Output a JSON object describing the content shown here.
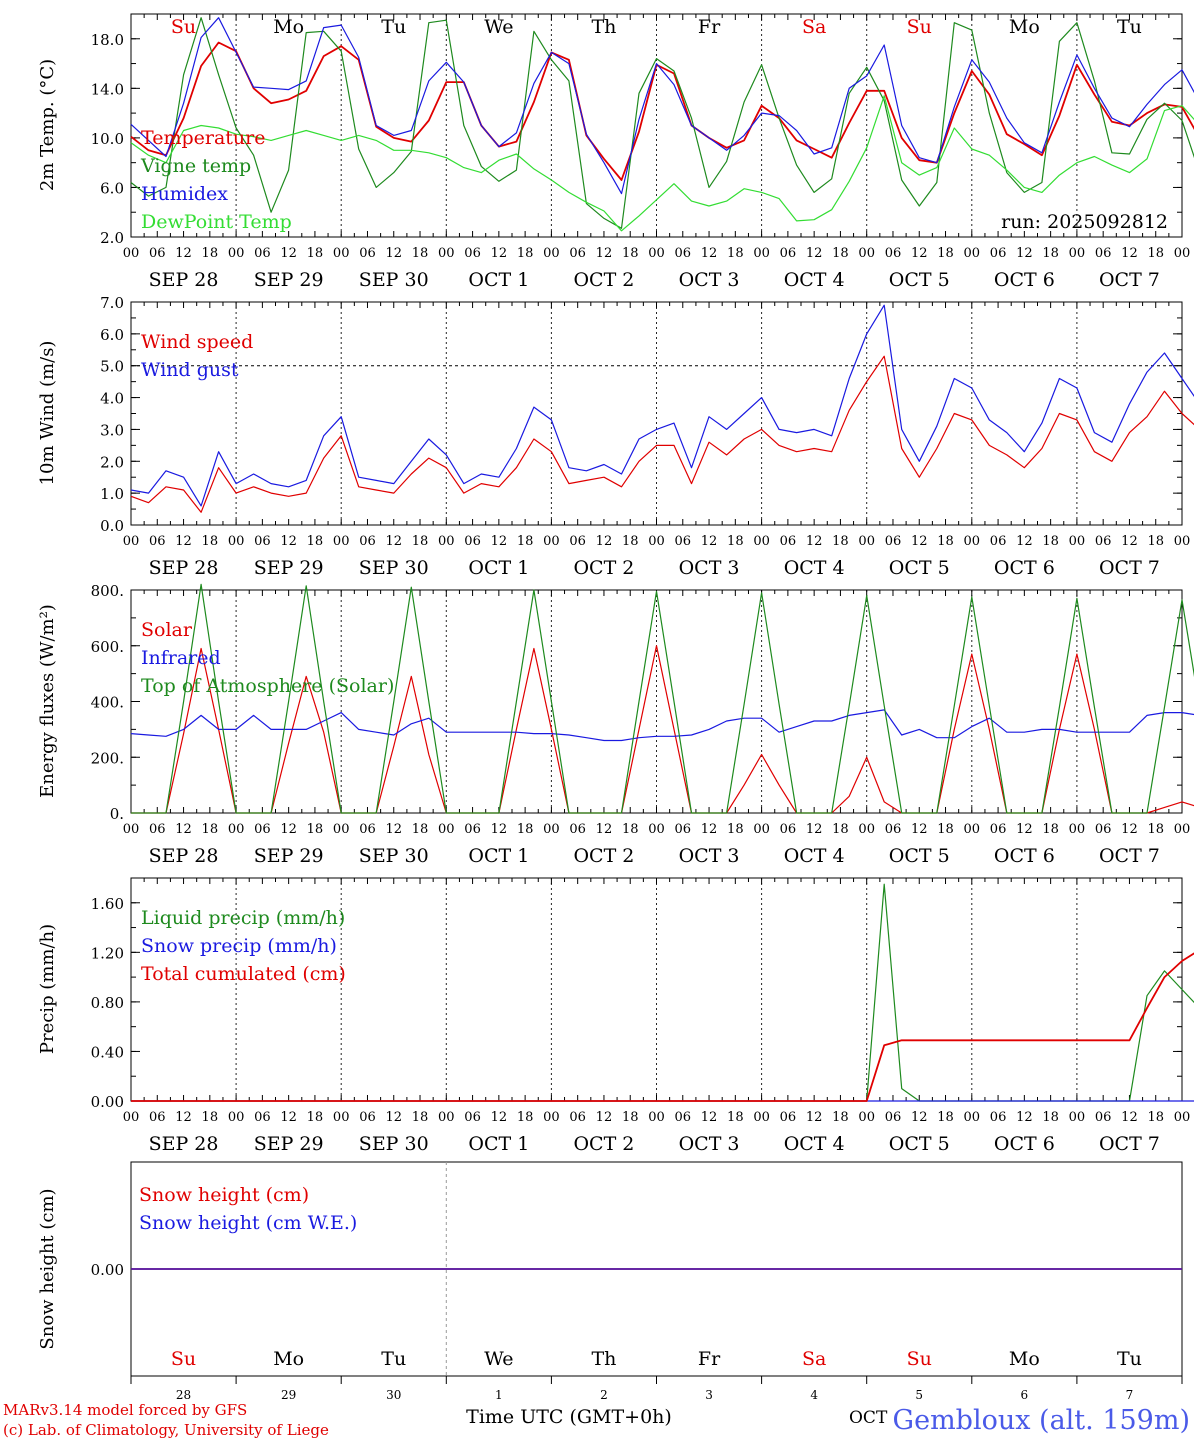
{
  "chart_data": [
    {
      "type": "line",
      "id": "temp",
      "ylabel": "2m Temp. (°C)",
      "ylim": [
        2.0,
        20.0
      ],
      "yticks": [
        "2.0",
        "6.0",
        "10.0",
        "14.0",
        "18.0"
      ],
      "ytick_values": [
        2,
        6,
        10,
        14,
        18
      ],
      "annotation": "run: 2025092812",
      "day_labels": [
        {
          "text": "Su",
          "color": "#e00000"
        },
        {
          "text": "Mo",
          "color": "#000000"
        },
        {
          "text": "Tu",
          "color": "#000000"
        },
        {
          "text": "We",
          "color": "#000000"
        },
        {
          "text": "Th",
          "color": "#000000"
        },
        {
          "text": "Fr",
          "color": "#000000"
        },
        {
          "text": "Sa",
          "color": "#e00000"
        },
        {
          "text": "Su",
          "color": "#e00000"
        },
        {
          "text": "Mo",
          "color": "#000000"
        },
        {
          "text": "Tu",
          "color": "#000000"
        }
      ],
      "series": [
        {
          "name": "Temperature",
          "color": "#e00000",
          "values": [
            10.1,
            9.0,
            8.6,
            11.6,
            15.8,
            17.7,
            17.0,
            14.0,
            12.8,
            13.1,
            13.8,
            16.6,
            17.4,
            16.3,
            10.9,
            10.0,
            9.7,
            11.4,
            14.5,
            14.5,
            11.0,
            9.3,
            9.7,
            12.9,
            16.9,
            16.3,
            10.2,
            8.3,
            6.6,
            10.5,
            15.9,
            15.2,
            11.0,
            10.0,
            9.2,
            9.8,
            12.6,
            11.6,
            9.8,
            9.1,
            8.4,
            11.2,
            13.8,
            13.8,
            10.0,
            8.2,
            8.0,
            12.0,
            15.4,
            13.5,
            10.3,
            9.5,
            8.6,
            11.8,
            15.9,
            13.5,
            11.3,
            11.0,
            12.0,
            12.7,
            12.5,
            10.0,
            9.9
          ]
        },
        {
          "name": "Vigne temp",
          "color": "#1e8a1e",
          "values": [
            6.4,
            5.3,
            6.0,
            15.1,
            19.7,
            15.1,
            10.8,
            8.6,
            4.0,
            7.4,
            18.5,
            18.6,
            17.0,
            9.1,
            6.0,
            7.2,
            8.9,
            19.3,
            19.5,
            11.0,
            7.7,
            6.5,
            7.4,
            18.6,
            16.3,
            14.6,
            4.7,
            3.5,
            2.7,
            13.6,
            16.4,
            15.4,
            11.6,
            6.0,
            8.1,
            12.9,
            15.9,
            11.6,
            7.8,
            5.6,
            6.7,
            13.6,
            15.7,
            13.0,
            6.6,
            4.5,
            6.4,
            19.3,
            18.7,
            12.0,
            7.2,
            5.6,
            6.4,
            17.8,
            19.3,
            14.6,
            8.8,
            8.7,
            11.5,
            12.8,
            11.4,
            7.2,
            6.5
          ]
        },
        {
          "name": "Humidex",
          "color": "#1a1ae0",
          "values": [
            11.1,
            9.8,
            8.5,
            12.8,
            18.1,
            19.7,
            16.9,
            14.1,
            14.0,
            13.9,
            14.6,
            18.9,
            19.1,
            16.5,
            11.0,
            10.2,
            10.6,
            14.6,
            16.1,
            14.5,
            11.0,
            9.3,
            10.4,
            14.4,
            16.9,
            16.0,
            10.3,
            8.0,
            5.5,
            11.5,
            16.0,
            14.3,
            11.0,
            10.0,
            9.0,
            10.2,
            12.0,
            11.8,
            10.6,
            8.7,
            9.2,
            14.0,
            15.0,
            17.5,
            11.0,
            8.4,
            8.0,
            12.5,
            16.3,
            14.5,
            11.6,
            9.6,
            8.8,
            12.9,
            16.7,
            14.0,
            11.6,
            10.9,
            12.7,
            14.3,
            15.5,
            12.9,
            11.2
          ]
        },
        {
          "name": "DewPoint Temp",
          "color": "#33dd33",
          "values": [
            9.6,
            8.6,
            8.0,
            10.6,
            11.0,
            10.8,
            10.3,
            10.1,
            9.8,
            10.2,
            10.6,
            10.2,
            9.8,
            10.2,
            9.8,
            9.0,
            9.0,
            8.8,
            8.4,
            7.6,
            7.2,
            8.2,
            8.7,
            7.5,
            6.6,
            5.6,
            4.8,
            4.1,
            2.5,
            3.7,
            5.0,
            6.3,
            4.9,
            4.5,
            4.9,
            5.9,
            5.6,
            5.1,
            3.3,
            3.4,
            4.2,
            6.5,
            9.2,
            13.4,
            8.0,
            7.0,
            7.6,
            10.8,
            9.1,
            8.6,
            7.4,
            6.0,
            5.6,
            7.0,
            8.0,
            8.5,
            7.8,
            7.2,
            8.3,
            12.2,
            12.6,
            11.0,
            8.6
          ]
        }
      ]
    },
    {
      "type": "line",
      "id": "wind",
      "ylabel": "10m Wind (m/s)",
      "ylim": [
        0.0,
        7.0
      ],
      "yticks": [
        "0.0",
        "1.0",
        "2.0",
        "3.0",
        "4.0",
        "5.0",
        "6.0",
        "7.0"
      ],
      "ytick_values": [
        0,
        1,
        2,
        3,
        4,
        5,
        6,
        7
      ],
      "reference_line": 5.0,
      "series": [
        {
          "name": "Wind speed",
          "color": "#e00000",
          "values": [
            0.9,
            0.7,
            1.2,
            1.1,
            0.4,
            1.8,
            1.0,
            1.2,
            1.0,
            0.9,
            1.0,
            2.1,
            2.8,
            1.2,
            1.1,
            1.0,
            1.6,
            2.1,
            1.8,
            1.0,
            1.3,
            1.2,
            1.8,
            2.7,
            2.3,
            1.3,
            1.4,
            1.5,
            1.2,
            2.0,
            2.5,
            2.5,
            1.3,
            2.6,
            2.2,
            2.7,
            3.0,
            2.5,
            2.3,
            2.4,
            2.3,
            3.6,
            4.5,
            5.3,
            2.4,
            1.5,
            2.4,
            3.5,
            3.3,
            2.5,
            2.2,
            1.8,
            2.4,
            3.5,
            3.3,
            2.3,
            2.0,
            2.9,
            3.4,
            4.2,
            3.5,
            3.0,
            3.0
          ]
        },
        {
          "name": "Wind gust",
          "color": "#1a1ae0",
          "values": [
            1.1,
            1.0,
            1.7,
            1.5,
            0.6,
            2.3,
            1.3,
            1.6,
            1.3,
            1.2,
            1.4,
            2.8,
            3.4,
            1.5,
            1.4,
            1.3,
            2.0,
            2.7,
            2.2,
            1.3,
            1.6,
            1.5,
            2.4,
            3.7,
            3.3,
            1.8,
            1.7,
            1.9,
            1.6,
            2.7,
            3.0,
            3.2,
            1.8,
            3.4,
            3.0,
            3.5,
            4.0,
            3.0,
            2.9,
            3.0,
            2.8,
            4.6,
            6.0,
            6.9,
            3.0,
            2.0,
            3.1,
            4.6,
            4.3,
            3.3,
            2.9,
            2.3,
            3.2,
            4.6,
            4.3,
            2.9,
            2.6,
            3.8,
            4.8,
            5.4,
            4.6,
            3.8,
            3.9
          ]
        }
      ]
    },
    {
      "type": "line",
      "id": "energy",
      "ylabel": "Energy fluxes (W/m²)",
      "ylim": [
        0,
        800
      ],
      "yticks": [
        "0.",
        "200.",
        "400.",
        "600.",
        "800."
      ],
      "ytick_values": [
        0,
        200,
        400,
        600,
        800
      ],
      "series": [
        {
          "name": "Solar",
          "color": "#e00000",
          "values": [
            0,
            0,
            0,
            285,
            590,
            300,
            0,
            0,
            0,
            250,
            490,
            290,
            0,
            0,
            0,
            240,
            490,
            210,
            0,
            0,
            0,
            0,
            300,
            590,
            300,
            0,
            0,
            0,
            0,
            300,
            600,
            300,
            0,
            0,
            0,
            100,
            210,
            100,
            0,
            0,
            0,
            60,
            200,
            40,
            0,
            0,
            0,
            300,
            570,
            300,
            0,
            0,
            0,
            300,
            570,
            300,
            0,
            0,
            0,
            20,
            40,
            20,
            0
          ]
        },
        {
          "name": "Infrared",
          "color": "#1a1ae0",
          "values": [
            285,
            280,
            275,
            300,
            350,
            300,
            300,
            350,
            300,
            300,
            300,
            330,
            360,
            300,
            290,
            280,
            320,
            340,
            290,
            290,
            290,
            290,
            290,
            285,
            285,
            280,
            270,
            260,
            260,
            270,
            275,
            275,
            280,
            300,
            330,
            340,
            340,
            290,
            310,
            330,
            330,
            350,
            360,
            370,
            280,
            300,
            270,
            270,
            310,
            340,
            290,
            290,
            300,
            300,
            290,
            290,
            290,
            290,
            350,
            360,
            360,
            350,
            300
          ]
        },
        {
          "name": "Top of Atmosphere (Solar)",
          "color": "#1e8a1e",
          "values": [
            0,
            0,
            0,
            400,
            820,
            400,
            0,
            0,
            0,
            400,
            815,
            400,
            0,
            0,
            0,
            400,
            810,
            400,
            0,
            0,
            0,
            0,
            400,
            800,
            400,
            0,
            0,
            0,
            0,
            400,
            795,
            400,
            0,
            0,
            0,
            390,
            790,
            390,
            0,
            0,
            0,
            385,
            780,
            385,
            0,
            0,
            0,
            385,
            775,
            385,
            0,
            0,
            0,
            380,
            770,
            380,
            0,
            0,
            0,
            380,
            765,
            380,
            0
          ]
        }
      ]
    },
    {
      "type": "line",
      "id": "precip",
      "ylabel": "Precip (mm/h)",
      "ylim": [
        0.0,
        1.8
      ],
      "yticks": [
        "0.00",
        "0.40",
        "0.80",
        "1.20",
        "1.60"
      ],
      "ytick_values": [
        0,
        0.4,
        0.8,
        1.2,
        1.6
      ],
      "series": [
        {
          "name": "Liquid precip (mm/h)",
          "color": "#1e8a1e",
          "values": [
            0,
            0,
            0,
            0,
            0,
            0,
            0,
            0,
            0,
            0,
            0,
            0,
            0,
            0,
            0,
            0,
            0,
            0,
            0,
            0,
            0,
            0,
            0,
            0,
            0,
            0,
            0,
            0,
            0,
            0,
            0,
            0,
            0,
            0,
            0,
            0,
            0,
            0,
            0,
            0,
            0,
            0,
            0,
            1.75,
            0.1,
            0,
            0,
            0,
            0,
            0,
            0,
            0,
            0,
            0,
            0,
            0,
            0,
            0,
            0.85,
            1.05,
            0.9,
            0.75,
            0.05
          ]
        },
        {
          "name": "Snow precip (mm/h)",
          "color": "#1a1ae0",
          "values": [
            0,
            0,
            0,
            0,
            0,
            0,
            0,
            0,
            0,
            0,
            0,
            0,
            0,
            0,
            0,
            0,
            0,
            0,
            0,
            0,
            0,
            0,
            0,
            0,
            0,
            0,
            0,
            0,
            0,
            0,
            0,
            0,
            0,
            0,
            0,
            0,
            0,
            0,
            0,
            0,
            0,
            0,
            0,
            0,
            0,
            0,
            0,
            0,
            0,
            0,
            0,
            0,
            0,
            0,
            0,
            0,
            0,
            0,
            0,
            0,
            0,
            0,
            0
          ]
        },
        {
          "name": "Total cumulated (cm)",
          "color": "#e00000",
          "values": [
            0,
            0,
            0,
            0,
            0,
            0,
            0,
            0,
            0,
            0,
            0,
            0,
            0,
            0,
            0,
            0,
            0,
            0,
            0,
            0,
            0,
            0,
            0,
            0,
            0,
            0,
            0,
            0,
            0,
            0,
            0,
            0,
            0,
            0,
            0,
            0,
            0,
            0,
            0,
            0,
            0,
            0,
            0,
            0.45,
            0.49,
            0.49,
            0.49,
            0.49,
            0.49,
            0.49,
            0.49,
            0.49,
            0.49,
            0.49,
            0.49,
            0.49,
            0.49,
            0.49,
            0.75,
            1.0,
            1.13,
            1.22,
            1.22
          ]
        }
      ]
    },
    {
      "type": "line",
      "id": "snow",
      "ylabel": "Snow height (cm)",
      "ylim": [
        -1,
        1
      ],
      "yticks": [
        "0.00"
      ],
      "ytick_values": [
        0
      ],
      "series": [
        {
          "name": "Snow height (cm)",
          "color": "#e00000",
          "values": [
            0,
            0
          ]
        },
        {
          "name": "Snow height (cm W.E.)",
          "color": "#1a1ae0",
          "values": [
            0,
            0
          ]
        }
      ],
      "day_labels": [
        {
          "text": "Su",
          "color": "#e00000"
        },
        {
          "text": "Mo",
          "color": "#000000"
        },
        {
          "text": "Tu",
          "color": "#000000"
        },
        {
          "text": "We",
          "color": "#000000"
        },
        {
          "text": "Th",
          "color": "#000000"
        },
        {
          "text": "Fr",
          "color": "#000000"
        },
        {
          "text": "Sa",
          "color": "#e00000"
        },
        {
          "text": "Su",
          "color": "#e00000"
        },
        {
          "text": "Mo",
          "color": "#000000"
        },
        {
          "text": "Tu",
          "color": "#000000"
        }
      ],
      "day_numbers": [
        "28",
        "29",
        "30",
        "1",
        "2",
        "3",
        "4",
        "5",
        "6",
        "7"
      ],
      "month_label": "OCT",
      "xlabel": "Time UTC (GMT+0h)"
    }
  ],
  "x_axis": {
    "hours": [
      "00",
      "06",
      "12",
      "18"
    ],
    "final_hour": "00",
    "dates": [
      "SEP 28",
      "SEP 29",
      "SEP 30",
      "OCT  1",
      "OCT  2",
      "OCT  3",
      "OCT  4",
      "OCT  5",
      "OCT  6",
      "OCT  7"
    ]
  },
  "footer": {
    "model_line": "MARv3.14 model forced by GFS",
    "credit_line": "(c) Lab. of Climatology, University of Liege",
    "station": "Gembloux (alt. 159m)"
  },
  "colors": {
    "red": "#e00000",
    "green": "#1e8a1e",
    "blue": "#1a1ae0",
    "lightgreen": "#33dd33",
    "station": "#4a5ae8"
  }
}
